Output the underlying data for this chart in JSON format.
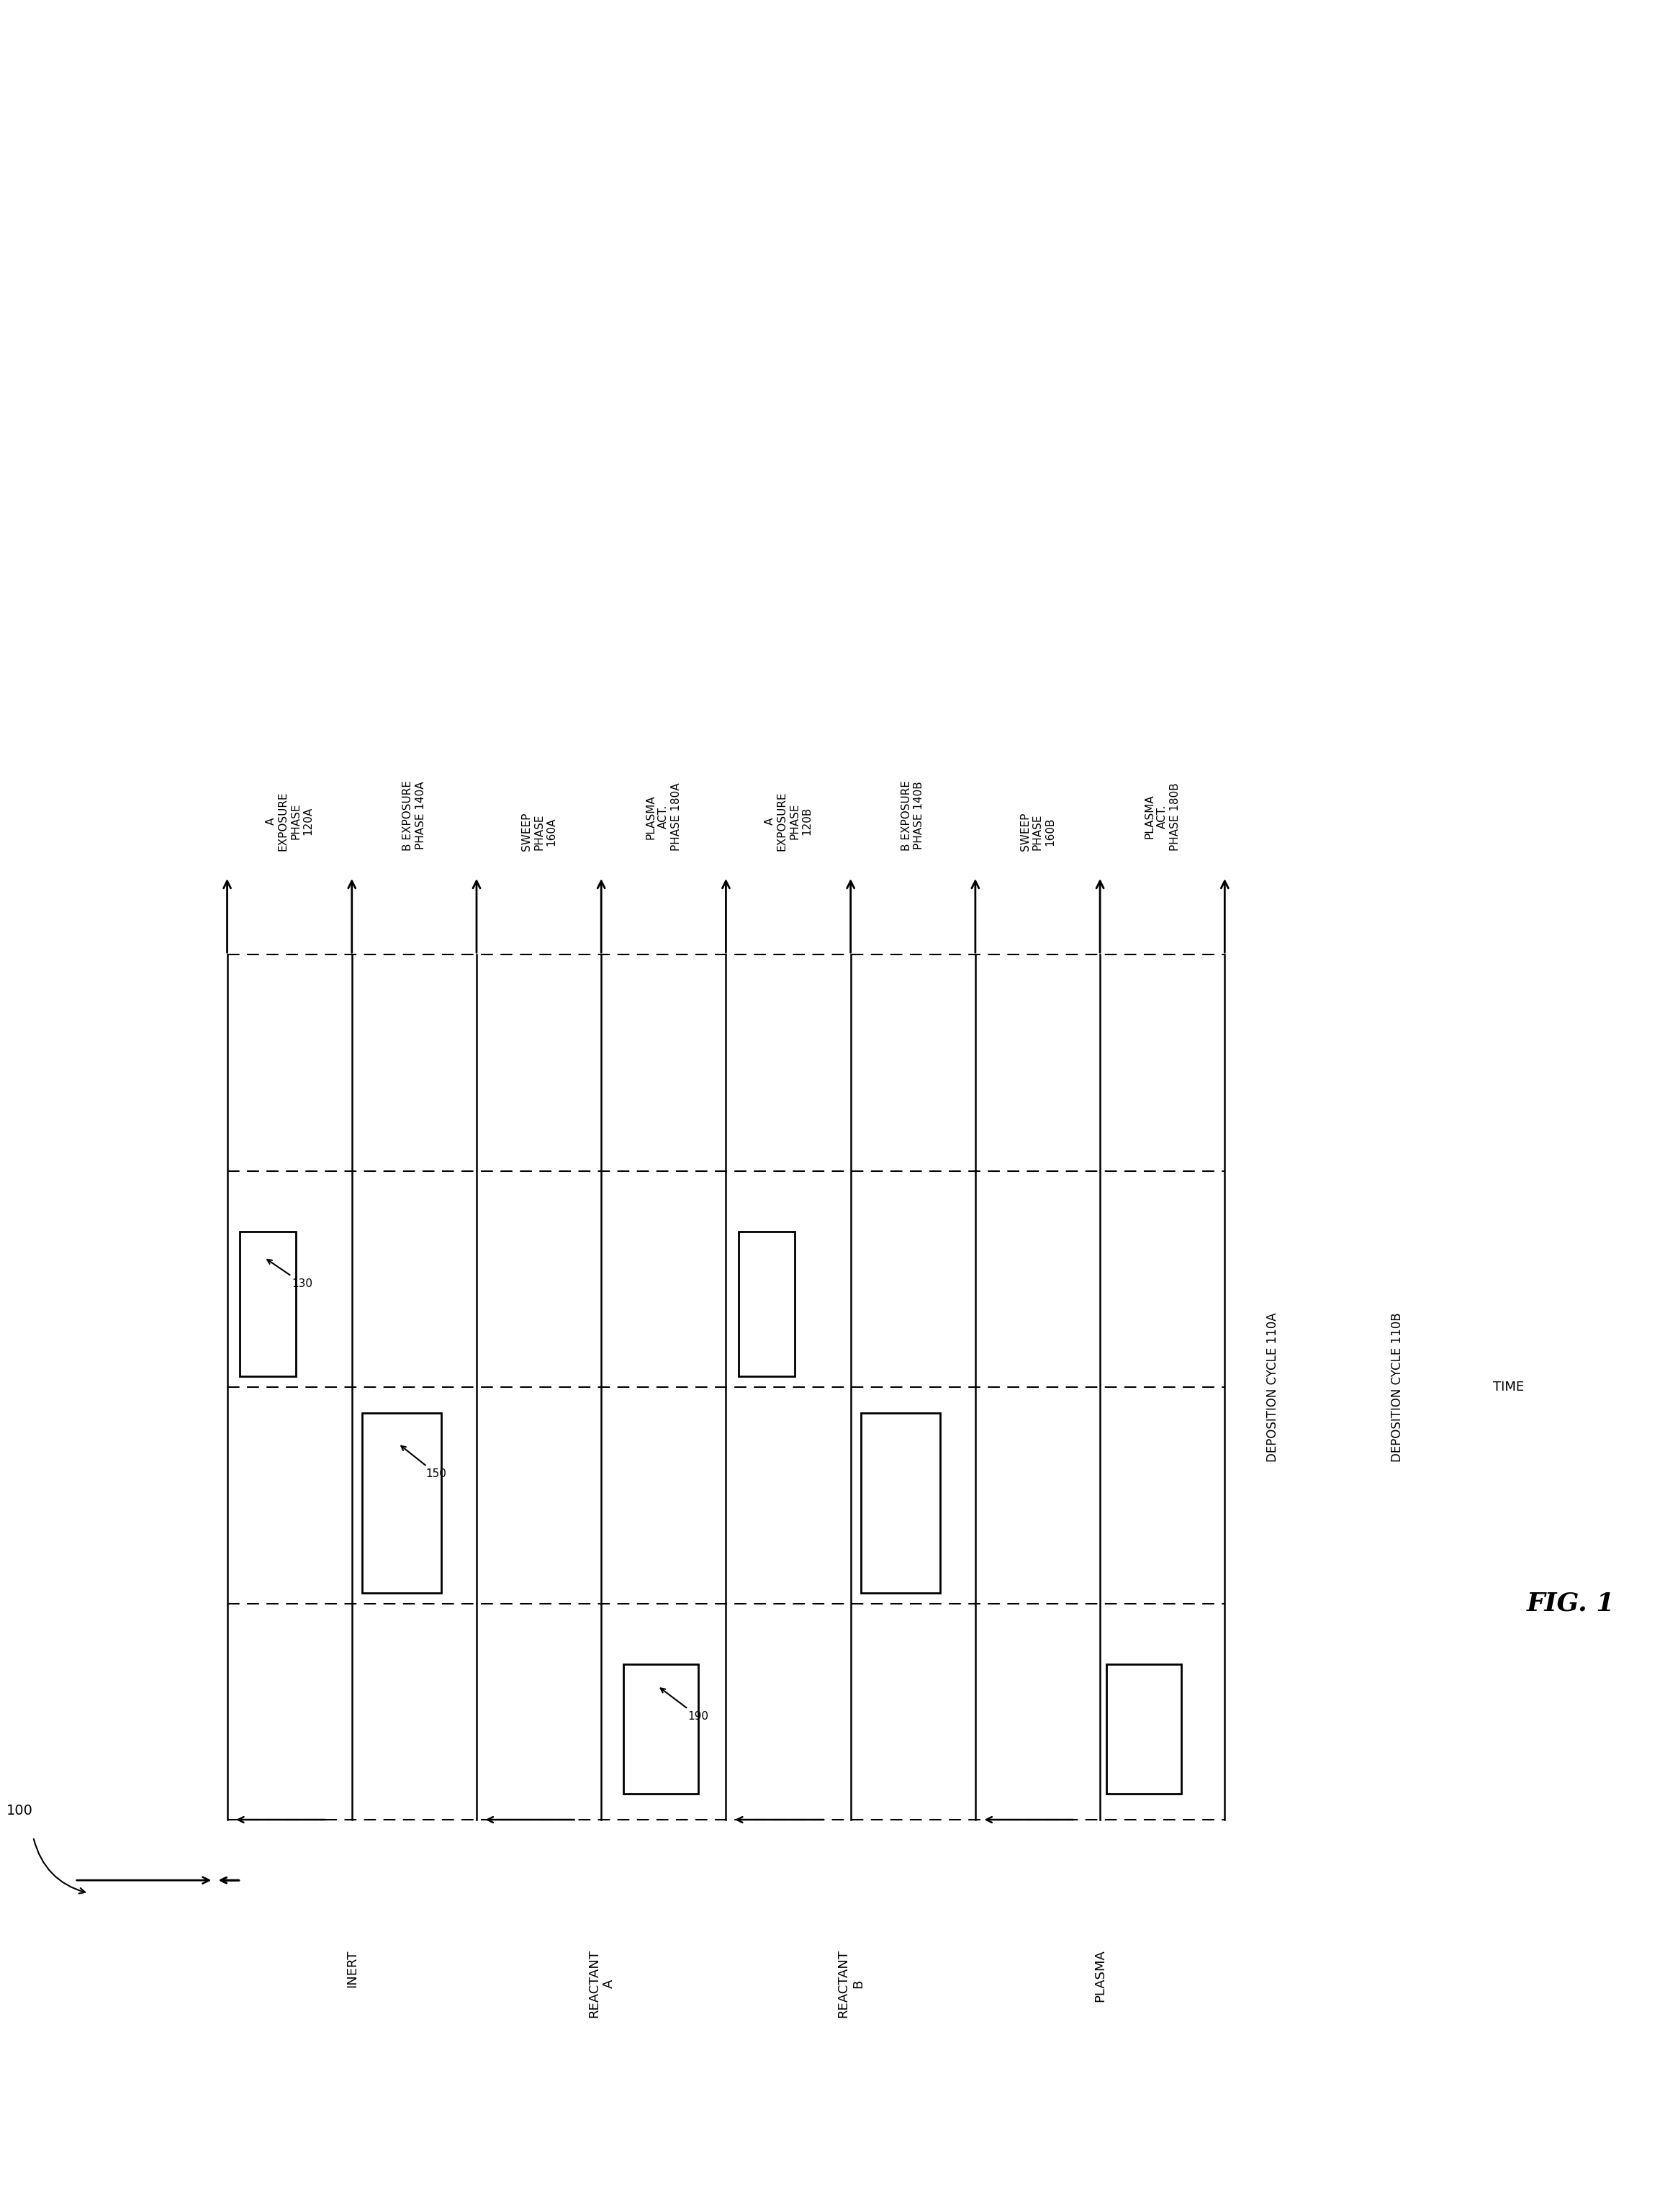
{
  "fig_width": 23.31,
  "fig_height": 30.73,
  "bg": "#ffffff",
  "phases": [
    "A\nEXPOSURE\nPHASE\n120A",
    "B EXPOSURE\nPHASE 140A",
    "SWEEP\nPHASE\n160A",
    "PLASMA\nACT.\nPHASE 180A",
    "A\nEXPOSURE\nPHASE\n120B",
    "B EXPOSURE\nPHASE 140B",
    "SWEEP\nPHASE\n160B",
    "PLASMA\nACT.\nPHASE 180B"
  ],
  "row_labels": [
    "INERT",
    "REACTANT\nA",
    "REACTANT\nB",
    "PLASMA"
  ],
  "cycle_labels": [
    "DEPOSITION CYCLE 110A",
    "DEPOSITION CYCLE 110B"
  ],
  "annotations": [
    "130",
    "150",
    "190"
  ],
  "time_label": "TIME",
  "fig_label": "FIG. 1",
  "main_ref": "100"
}
